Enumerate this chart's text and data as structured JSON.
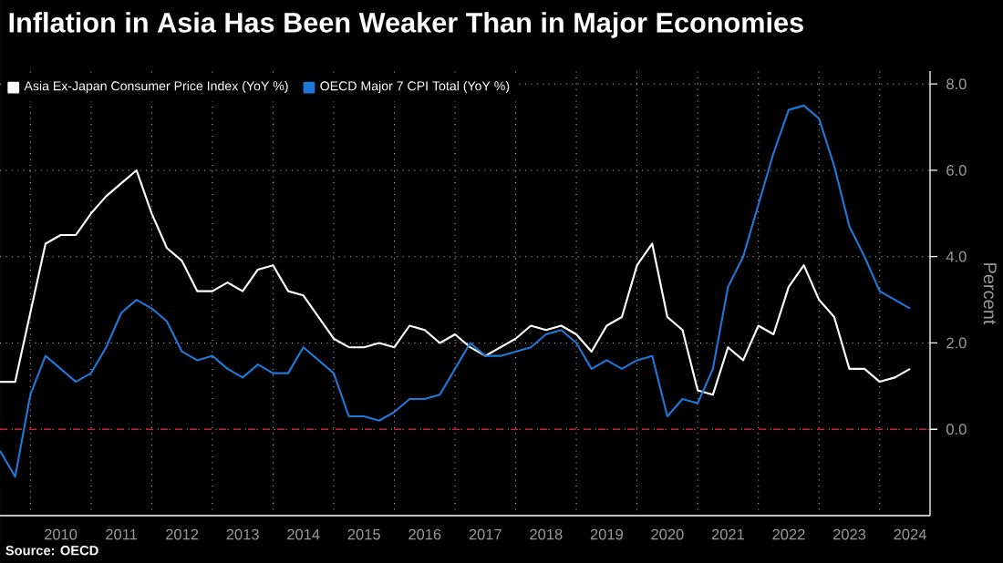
{
  "chart_data": {
    "type": "line",
    "title": "Inflation in Asia Has Been Weaker Than in Major Economies",
    "ylabel": "Percent",
    "annotations": [
      "Source: OECD"
    ],
    "x": [
      2009.5,
      2009.75,
      2010,
      2010.25,
      2010.5,
      2010.75,
      2011,
      2011.25,
      2011.5,
      2011.75,
      2012,
      2012.25,
      2012.5,
      2012.75,
      2013,
      2013.25,
      2013.5,
      2013.75,
      2014,
      2014.25,
      2014.5,
      2014.75,
      2015,
      2015.25,
      2015.5,
      2015.75,
      2016,
      2016.25,
      2016.5,
      2016.75,
      2017,
      2017.25,
      2017.5,
      2017.75,
      2018,
      2018.25,
      2018.5,
      2018.75,
      2019,
      2019.25,
      2019.5,
      2019.75,
      2020,
      2020.25,
      2020.5,
      2020.75,
      2021,
      2021.25,
      2021.5,
      2021.75,
      2022,
      2022.25,
      2022.5,
      2022.75,
      2023,
      2023.25,
      2023.5,
      2023.75,
      2024,
      2024.25,
      2024.5
    ],
    "series": [
      {
        "name": "Asia Ex-Japan Consumer Price Index (YoY %)",
        "color": "#ffffff",
        "values": [
          1.1,
          1.1,
          2.7,
          4.3,
          4.5,
          4.5,
          5.0,
          5.4,
          5.7,
          6.0,
          5.0,
          4.2,
          3.9,
          3.2,
          3.2,
          3.4,
          3.2,
          3.7,
          3.8,
          3.2,
          3.1,
          2.6,
          2.1,
          1.9,
          1.9,
          2.0,
          1.9,
          2.4,
          2.3,
          2.0,
          2.2,
          1.9,
          1.7,
          1.9,
          2.1,
          2.4,
          2.3,
          2.4,
          2.2,
          1.8,
          2.4,
          2.6,
          3.8,
          4.3,
          2.6,
          2.3,
          0.9,
          0.8,
          1.9,
          1.6,
          2.4,
          2.2,
          3.3,
          3.8,
          3.0,
          2.6,
          1.4,
          1.4,
          1.1,
          1.2,
          1.4
        ]
      },
      {
        "name": "OECD Major 7 CPI Total (YoY %)",
        "color": "#1f78d8",
        "values": [
          -0.5,
          -1.1,
          0.8,
          1.7,
          1.4,
          1.1,
          1.3,
          1.9,
          2.7,
          3.0,
          2.8,
          2.5,
          1.8,
          1.6,
          1.7,
          1.4,
          1.2,
          1.5,
          1.3,
          1.3,
          1.9,
          1.6,
          1.3,
          0.3,
          0.3,
          0.2,
          0.4,
          0.7,
          0.7,
          0.8,
          1.4,
          2.0,
          1.7,
          1.7,
          1.8,
          1.9,
          2.2,
          2.3,
          2.0,
          1.4,
          1.6,
          1.4,
          1.6,
          1.7,
          0.3,
          0.7,
          0.6,
          1.4,
          3.3,
          4.0,
          5.2,
          6.4,
          7.4,
          7.5,
          7.2,
          6.1,
          4.7,
          4.0,
          3.2,
          3.0,
          2.8
        ]
      }
    ],
    "xlim": [
      2009.5,
      2024.83
    ],
    "ylim": [
      -2,
      8.3
    ],
    "xticks": [
      {
        "value": 2010,
        "label": null
      },
      {
        "value": 2010.5,
        "label": "2010"
      },
      {
        "value": 2011,
        "label": null
      },
      {
        "value": 2011.5,
        "label": "2011"
      },
      {
        "value": 2012,
        "label": null
      },
      {
        "value": 2012.5,
        "label": "2012"
      },
      {
        "value": 2013,
        "label": null
      },
      {
        "value": 2013.5,
        "label": "2013"
      },
      {
        "value": 2014,
        "label": null
      },
      {
        "value": 2014.5,
        "label": "2014"
      },
      {
        "value": 2015,
        "label": null
      },
      {
        "value": 2015.5,
        "label": "2015"
      },
      {
        "value": 2016,
        "label": null
      },
      {
        "value": 2016.5,
        "label": "2016"
      },
      {
        "value": 2017,
        "label": null
      },
      {
        "value": 2017.5,
        "label": "2017"
      },
      {
        "value": 2018,
        "label": null
      },
      {
        "value": 2018.5,
        "label": "2018"
      },
      {
        "value": 2019,
        "label": null
      },
      {
        "value": 2019.5,
        "label": "2019"
      },
      {
        "value": 2020,
        "label": null
      },
      {
        "value": 2020.5,
        "label": "2020"
      },
      {
        "value": 2021,
        "label": null
      },
      {
        "value": 2021.5,
        "label": "2021"
      },
      {
        "value": 2022,
        "label": null
      },
      {
        "value": 2022.5,
        "label": "2022"
      },
      {
        "value": 2023,
        "label": null
      },
      {
        "value": 2023.5,
        "label": "2023"
      },
      {
        "value": 2024,
        "label": null
      },
      {
        "value": 2024.5,
        "label": "2024"
      }
    ],
    "yticks": [
      {
        "value": 0,
        "label": "0.0"
      },
      {
        "value": 2,
        "label": "2.0"
      },
      {
        "value": 4,
        "label": "4.0"
      },
      {
        "value": 6,
        "label": "6.0"
      },
      {
        "value": 8,
        "label": "8.0"
      }
    ],
    "ref_lines": [
      {
        "axis": "y",
        "value": 0,
        "color": "#c0242a",
        "line_style": "dashed"
      }
    ],
    "grid": true,
    "legend": "top left"
  }
}
